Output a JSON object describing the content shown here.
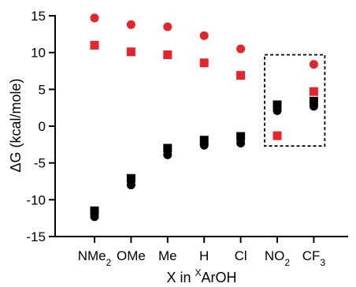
{
  "chart_data": {
    "type": "scatter",
    "title": "",
    "xlabel": "X in ArOH",
    "xlabel_superscript": "X",
    "ylabel": "ΔG (kcal/mole)",
    "ylim": [
      -15,
      15
    ],
    "yticks": [
      -15,
      -10,
      -5,
      0,
      5,
      10,
      15
    ],
    "ytick_labels": [
      "-15",
      "-10",
      "-5",
      "0",
      "5",
      "10",
      "15"
    ],
    "categories": [
      "NMe2",
      "OMe",
      "Me",
      "H",
      "Cl",
      "NO2",
      "CF3"
    ],
    "category_labels": [
      {
        "main": "NMe",
        "sub": "2"
      },
      {
        "main": "OMe",
        "sub": ""
      },
      {
        "main": "Me",
        "sub": ""
      },
      {
        "main": "H",
        "sub": ""
      },
      {
        "main": "Cl",
        "sub": ""
      },
      {
        "main": "NO",
        "sub": "2"
      },
      {
        "main": "CF",
        "sub": "3"
      }
    ],
    "grid": false,
    "legend": "none",
    "highlight_box": {
      "categories": [
        "NO2",
        "CF3"
      ],
      "y_range": [
        -2.7,
        9.7
      ],
      "style": "dashed"
    },
    "series": [
      {
        "marker": "circle",
        "color": "#e8232a",
        "values": [
          14.7,
          13.8,
          13.5,
          12.3,
          10.5,
          2.5,
          8.4
        ]
      },
      {
        "marker": "square",
        "color": "#e8232a",
        "values": [
          11.0,
          10.1,
          9.7,
          8.6,
          6.9,
          -1.3,
          4.7
        ]
      },
      {
        "marker": "square",
        "color": "#000000",
        "values": [
          -11.5,
          -7.1,
          -3.0,
          -1.9,
          -1.4,
          2.9,
          3.4
        ]
      },
      {
        "marker": "circle",
        "color": "#000000",
        "values": [
          -12.3,
          -8.0,
          -3.9,
          -2.6,
          -2.3,
          2.1,
          2.7
        ]
      }
    ]
  }
}
